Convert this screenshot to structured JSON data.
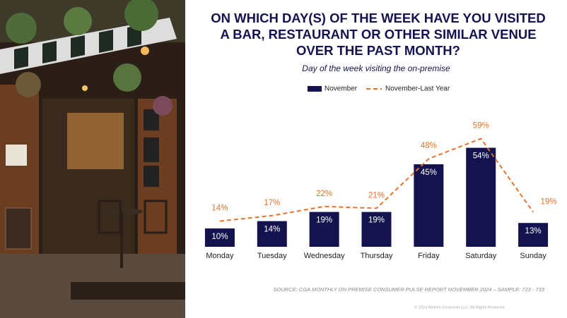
{
  "chart_data": {
    "type": "bar",
    "title": "ON WHICH DAY(S) OF THE WEEK HAVE YOU VISITED A BAR, RESTAURANT OR OTHER SIMILAR VENUE OVER THE PAST MONTH?",
    "subtitle": "Day of the week visiting the on-premise",
    "categories": [
      "Monday",
      "Tuesday",
      "Wednesday",
      "Thursday",
      "Friday",
      "Saturday",
      "Sunday"
    ],
    "series": [
      {
        "name": "November",
        "type": "bar",
        "color": "#14134f",
        "values": [
          10,
          14,
          19,
          19,
          45,
          54,
          13
        ],
        "value_labels": [
          "10%",
          "14%",
          "19%",
          "19%",
          "45%",
          "54%",
          "13%"
        ]
      },
      {
        "name": "November-Last Year",
        "type": "line",
        "color": "#e8732a",
        "values": [
          14,
          17,
          22,
          21,
          48,
          59,
          19
        ],
        "value_labels": [
          "14%",
          "17%",
          "22%",
          "21%",
          "48%",
          "59%",
          "19%"
        ]
      }
    ],
    "ylim": [
      0,
      60
    ],
    "source": "SOURCE: CGA MONTHLY ON PREMISE CONSUMER PULSE REPORT NOVEMBER 2024 – SAMPLE: 723 - 733",
    "copyright": "© 2024 Nielsen Consumer LLC. All Rights Reserved."
  }
}
